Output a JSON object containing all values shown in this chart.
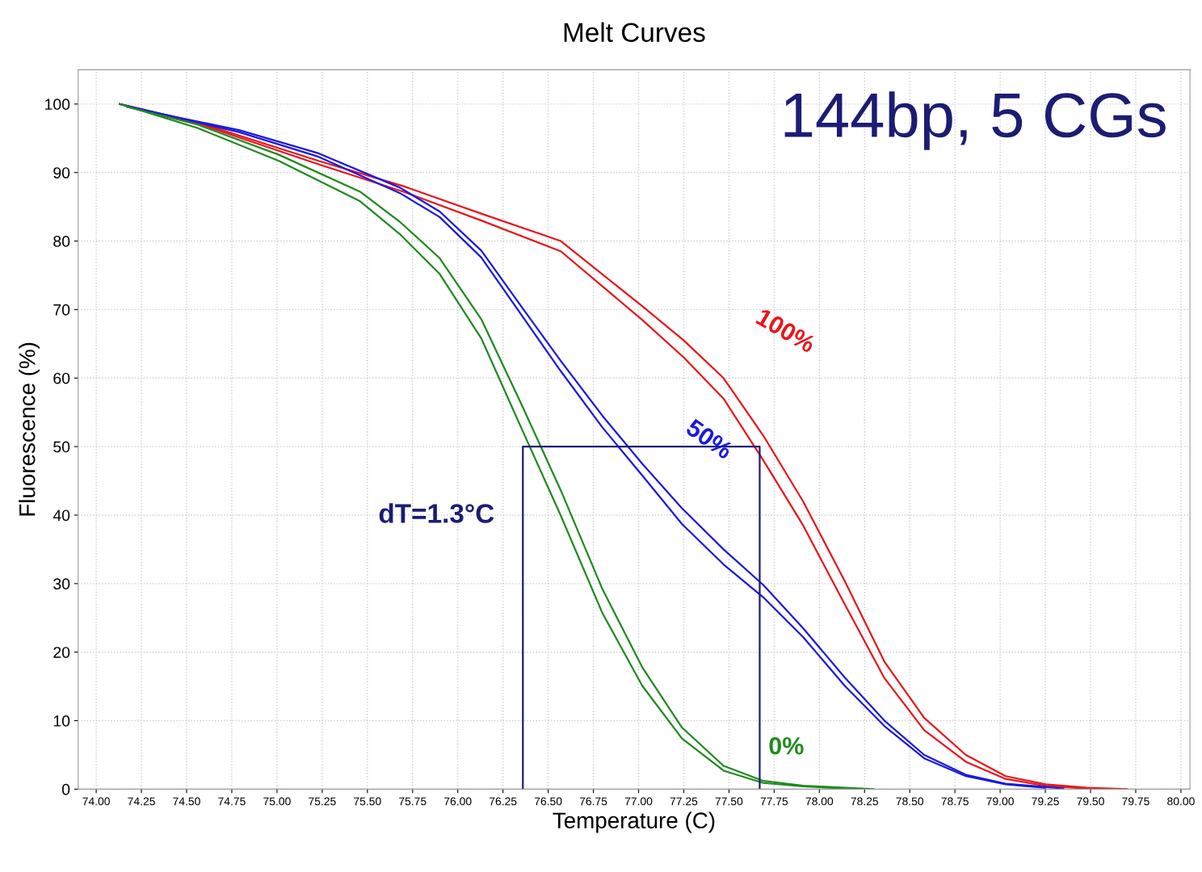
{
  "chart_data": {
    "type": "line",
    "title": "Melt Curves",
    "xlabel": "Temperature (C)",
    "ylabel": "Fluorescence (%)",
    "annotations": [
      "144bp, 5 CGs",
      "dT=1.3°C"
    ],
    "xlim": [
      73.9,
      80.05
    ],
    "ylim": [
      0,
      105
    ],
    "xticks": [
      {
        "value": 74.0,
        "label": "74.00"
      },
      {
        "value": 74.25,
        "label": "74.25"
      },
      {
        "value": 74.5,
        "label": "74.50"
      },
      {
        "value": 74.75,
        "label": "74.75"
      },
      {
        "value": 75.0,
        "label": "75.00"
      },
      {
        "value": 75.25,
        "label": "75.25"
      },
      {
        "value": 75.5,
        "label": "75.50"
      },
      {
        "value": 75.75,
        "label": "75.75"
      },
      {
        "value": 76.0,
        "label": "76.00"
      },
      {
        "value": 76.25,
        "label": "76.25"
      },
      {
        "value": 76.5,
        "label": "76.50"
      },
      {
        "value": 76.75,
        "label": "76.75"
      },
      {
        "value": 77.0,
        "label": "77.00"
      },
      {
        "value": 77.25,
        "label": "77.25"
      },
      {
        "value": 77.5,
        "label": "77.50"
      },
      {
        "value": 77.75,
        "label": "77.75"
      },
      {
        "value": 78.0,
        "label": "78.00"
      },
      {
        "value": 78.25,
        "label": "78.25"
      },
      {
        "value": 78.5,
        "label": "78.50"
      },
      {
        "value": 78.75,
        "label": "78.75"
      },
      {
        "value": 79.0,
        "label": "79.00"
      },
      {
        "value": 79.25,
        "label": "79.25"
      },
      {
        "value": 79.5,
        "label": "79.50"
      },
      {
        "value": 79.75,
        "label": "79.75"
      },
      {
        "value": 80.0,
        "label": "80.00"
      }
    ],
    "yticks": [
      0,
      10,
      20,
      30,
      40,
      50,
      60,
      70,
      80,
      90,
      100
    ],
    "grid": true,
    "marker": "none",
    "line_style": "solid",
    "series": [
      {
        "name": "100%",
        "color": "#e8161b",
        "x": [
          74.13,
          74.6,
          75.23,
          75.7,
          76.13,
          76.57,
          77.02,
          77.25,
          77.47,
          77.69,
          77.91,
          78.14,
          78.36,
          78.58,
          78.81,
          79.03,
          79.25,
          79.48,
          79.7
        ],
        "values": [
          100,
          97,
          91.7,
          88,
          84,
          80,
          70.5,
          65.5,
          60,
          51.6,
          42,
          30.4,
          18.6,
          10.4,
          5,
          1.9,
          0.7,
          0.2,
          0
        ]
      },
      {
        "color": "#e8161b",
        "x": [
          74.17,
          74.6,
          75.23,
          75.7,
          76.13,
          76.57,
          77.02,
          77.25,
          77.47,
          77.69,
          77.91,
          78.14,
          78.36,
          78.58,
          78.81,
          79.03,
          79.25,
          79.48,
          79.62
        ],
        "values": [
          99.6,
          96.8,
          91.2,
          87.2,
          83,
          78.5,
          68.5,
          63,
          57,
          48,
          38.5,
          27,
          16.2,
          8.6,
          4,
          1.5,
          0.5,
          0.1,
          0
        ]
      },
      {
        "name": "50%",
        "color": "#1a1adf",
        "x": [
          74.13,
          74.79,
          75.23,
          75.68,
          75.9,
          76.13,
          76.35,
          76.57,
          76.8,
          77.02,
          77.24,
          77.47,
          77.69,
          77.91,
          78.14,
          78.36,
          78.58,
          78.81,
          79.03,
          79.25
        ],
        "values": [
          100,
          95.9,
          92.3,
          87,
          83.5,
          77.6,
          69.3,
          61,
          52.8,
          45.8,
          38.7,
          32.8,
          28,
          22.2,
          15.1,
          9.2,
          4.5,
          1.9,
          0.7,
          0.2
        ]
      },
      {
        "color": "#1a1adf",
        "x": [
          74.17,
          74.79,
          75.23,
          75.68,
          75.9,
          76.13,
          76.35,
          76.57,
          76.8,
          77.02,
          77.24,
          77.47,
          77.69,
          77.91,
          78.14,
          78.36,
          78.58,
          78.81,
          79.03,
          79.35
        ],
        "values": [
          99.6,
          96.2,
          92.8,
          87.8,
          84.3,
          78.6,
          70.5,
          62.5,
          54.5,
          47.5,
          41,
          35,
          29.8,
          23.5,
          16.3,
          10,
          5,
          2.1,
          0.8,
          0.1
        ]
      },
      {
        "name": "0%",
        "color": "#1f8a1f",
        "x": [
          74.13,
          74.56,
          75.01,
          75.46,
          75.68,
          75.9,
          76.13,
          76.35,
          76.57,
          76.8,
          77.02,
          77.24,
          77.47,
          77.69,
          77.91,
          78.14
        ],
        "values": [
          100,
          96.5,
          91.7,
          85.8,
          81,
          75.2,
          65.8,
          52.8,
          39.9,
          25.7,
          15.1,
          7.4,
          2.7,
          0.9,
          0.4,
          0.1
        ]
      },
      {
        "color": "#1f8a1f",
        "x": [
          74.17,
          74.56,
          75.01,
          75.46,
          75.68,
          75.9,
          76.13,
          76.35,
          76.57,
          76.8,
          77.02,
          77.24,
          77.47,
          77.69,
          77.91,
          78.3
        ],
        "values": [
          99.6,
          97,
          92.6,
          87.2,
          82.8,
          77.5,
          68.6,
          56.3,
          43.6,
          29.2,
          17.8,
          9,
          3.4,
          1.2,
          0.5,
          0
        ]
      },
      {
        "color": "#1c1c74",
        "x": [
          76.36,
          76.36,
          77.67,
          77.67
        ],
        "values": [
          0,
          50,
          50,
          0
        ]
      }
    ]
  }
}
